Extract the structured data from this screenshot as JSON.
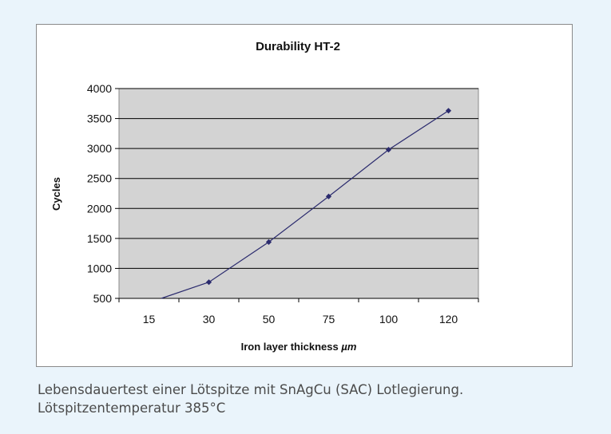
{
  "caption": {
    "line1": "Lebensdauertest einer Lötspitze mit SnAgCu (SAC) Lotlegierung.",
    "line2": "Lötspitzentemperatur 385°C"
  },
  "colors": {
    "page_background": "#eaf4fb",
    "plot_background": "#d3d3d3",
    "series": "#2b2b6e"
  },
  "chart_data": {
    "type": "line",
    "title": "Durability HT-2",
    "xlabel": "Iron layer thickness",
    "xlabel_unit": "µm",
    "ylabel": "Cycles",
    "categories": [
      "15",
      "30",
      "50",
      "75",
      "100",
      "120"
    ],
    "series": [
      {
        "values": [
          430,
          770,
          1440,
          2200,
          2980,
          3630
        ]
      }
    ],
    "yticks": [
      "500",
      "1000",
      "1500",
      "2000",
      "2500",
      "3000",
      "3500",
      "4000"
    ],
    "ylim": [
      500,
      4000
    ],
    "grid": "horizontal",
    "legend": "none",
    "marker": "diamond"
  }
}
